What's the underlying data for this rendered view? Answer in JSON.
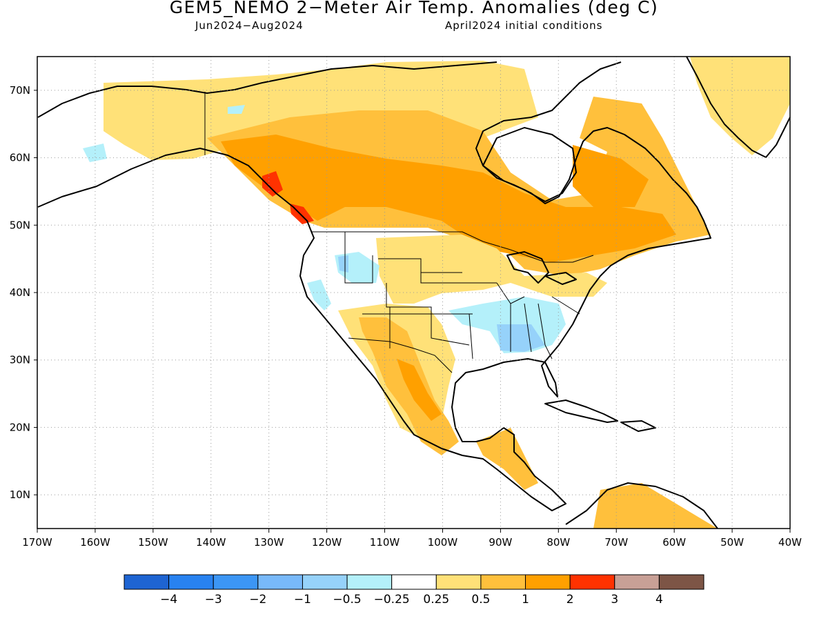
{
  "title": "GEM5_NEMO 2−Meter Air Temp. Anomalies (deg C)",
  "subtitle_left": "Jun2024−Aug2024",
  "subtitle_right": "April2024 initial conditions",
  "map": {
    "lon_range": [
      -170,
      -40
    ],
    "lat_range": [
      5,
      75
    ],
    "lat_labels": [
      "10N",
      "20N",
      "30N",
      "40N",
      "50N",
      "60N",
      "70N"
    ],
    "lon_labels": [
      "170W",
      "160W",
      "150W",
      "140W",
      "130W",
      "120W",
      "110W",
      "100W",
      "90W",
      "80W",
      "70W",
      "60W",
      "50W",
      "40W"
    ],
    "gridlines": "dotted"
  },
  "colorbar": {
    "labels": [
      "−4",
      "−3",
      "−2",
      "−1",
      "−0.5",
      "−0.25",
      "0.25",
      "0.5",
      "1",
      "2",
      "3",
      "4"
    ],
    "colors": [
      "#1e64d2",
      "#2882f0",
      "#3c96f5",
      "#78b9fa",
      "#96d2fa",
      "#b4f0fa",
      "#ffffff",
      "#ffe178",
      "#ffc03c",
      "#ffa000",
      "#ff3200",
      "#c8a096",
      "#7d5546"
    ]
  }
}
